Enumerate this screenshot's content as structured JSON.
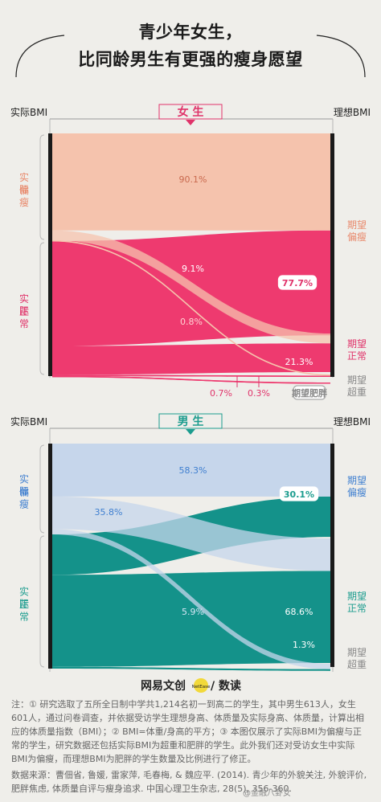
{
  "title": {
    "line1": "青少年女生，",
    "line2": "比同龄男生有更强的瘦身愿望"
  },
  "panels": {
    "female": {
      "label": "女 生",
      "left_axis": "实际BMI",
      "right_axis": "理想BMI",
      "accent": "#e0336a",
      "thin_color": "#f5c3ad",
      "normal_color": "#ee3a6f"
    },
    "male": {
      "label": "男 生",
      "left_axis": "实际BMI",
      "right_axis": "理想BMI",
      "accent": "#1b9c8e",
      "thin_color": "#c6d6eb",
      "normal_color": "#14928a"
    }
  },
  "chart_data": [
    {
      "type": "sankey",
      "title": "女生",
      "left_nodes": [
        {
          "name": "实际偏瘦"
        },
        {
          "name": "实际正常"
        }
      ],
      "right_nodes": [
        {
          "name": "期望偏瘦",
          "share_label": ""
        },
        {
          "name": "期望正常",
          "share_label": "21.3%"
        },
        {
          "name": "期望超重",
          "share_label": ""
        }
      ],
      "right_callouts": [
        {
          "text": "77.7%",
          "boxed": true
        },
        {
          "text": "21.3%",
          "boxed": false
        },
        {
          "text": "期望肥胖",
          "boxed": true
        }
      ],
      "flows": [
        {
          "from": "实际偏瘦",
          "to": "期望偏瘦",
          "label": "90.1%",
          "value": 90.1
        },
        {
          "from": "实际偏瘦",
          "to": "期望正常",
          "label": "9.1%",
          "value": 9.1
        },
        {
          "from": "实际偏瘦",
          "to": "期望超重",
          "label": "0.8%",
          "value": 0.8
        },
        {
          "from": "实际正常",
          "to": "期望偏瘦",
          "label": "",
          "value": 77.7
        },
        {
          "from": "实际正常",
          "to": "期望正常",
          "label": "",
          "value": 21.3
        },
        {
          "from": "实际正常",
          "to": "期望超重",
          "label": "0.7%",
          "value": 0.7
        },
        {
          "from": "实际正常",
          "to": "期望肥胖",
          "label": "0.3%",
          "value": 0.3
        }
      ]
    },
    {
      "type": "sankey",
      "title": "男生",
      "left_nodes": [
        {
          "name": "实际偏瘦"
        },
        {
          "name": "实际正常"
        }
      ],
      "right_nodes": [
        {
          "name": "期望偏瘦",
          "share_label": ""
        },
        {
          "name": "期望正常",
          "share_label": "68.6%"
        },
        {
          "name": "期望超重",
          "share_label": ""
        }
      ],
      "right_callouts": [
        {
          "text": "30.1%",
          "boxed": true
        },
        {
          "text": "68.6%",
          "boxed": false
        }
      ],
      "flows": [
        {
          "from": "实际偏瘦",
          "to": "期望偏瘦",
          "label": "58.3%",
          "value": 58.3
        },
        {
          "from": "实际偏瘦",
          "to": "期望正常",
          "label": "35.8%",
          "value": 35.8
        },
        {
          "from": "实际偏瘦",
          "to": "期望超重",
          "label": "5.9%",
          "value": 5.9
        },
        {
          "from": "实际正常",
          "to": "期望偏瘦",
          "label": "",
          "value": 30.1
        },
        {
          "from": "实际正常",
          "to": "期望正常",
          "label": "",
          "value": 68.6
        },
        {
          "from": "实际正常",
          "to": "期望超重",
          "label": "1.3%",
          "value": 1.3
        }
      ]
    }
  ],
  "brand": {
    "text": "网易文创",
    "badge": "NetEase",
    "suffix": "/ 数读"
  },
  "notes": {
    "note": "注：① 研究选取了五所全日制中学共1,214名初一到高二的学生，其中男生613人，女生601人，通过问卷调查，并依据受访学生理想身高、体质量及实际身高、体质量，计算出相应的体质量指数（BMI）；② BMI=体重/身高的平方；③ 本图仅展示了实际BMI为偏瘦与正常的学生，研究数据还包括实际BMI为超重和肥胖的学生。此外我们还对受访女生中实际BMI为偏瘦，而理想BMI为肥胖的学生数量及比例进行了修正。",
    "source": "数据来源：曹佃省, 鲁媛, 雷家萍, 毛春梅, & 魏应平. (2014). 青少年的外貌关注, 外貌评价, 肥胖焦虑, 体质量自评与瘦身追求. 中国心理卫生杂志, 28(5), 356-360.",
    "watermark": "@金融八卦女"
  }
}
